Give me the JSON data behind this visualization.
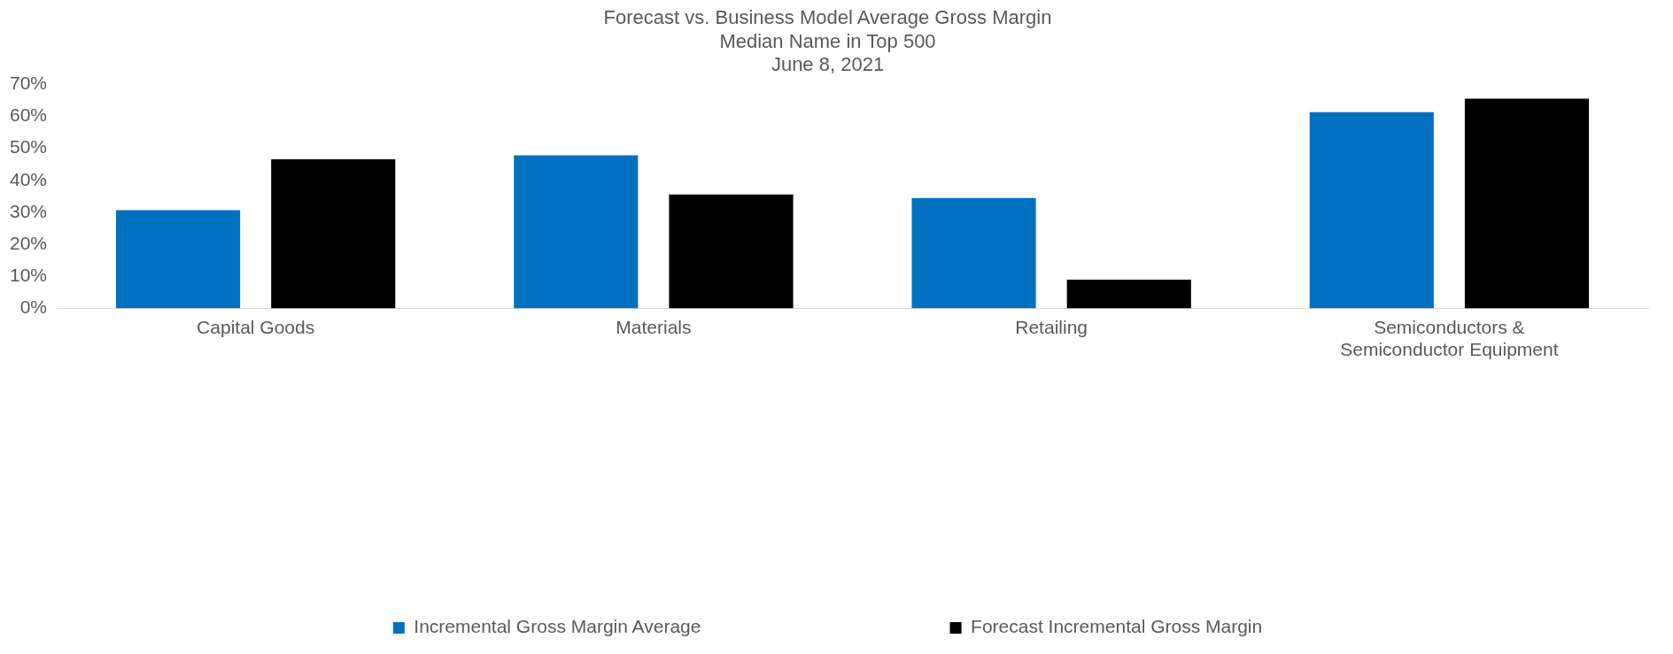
{
  "chart_data": {
    "type": "bar",
    "title": "Forecast vs. Business Model Average Gross Margin",
    "subtitle": "Median Name in Top 500\nJune 8, 2021",
    "categories": [
      "Capital Goods",
      "Materials",
      "Retailing",
      "Semiconductors & Semiconductor Equipment"
    ],
    "series": [
      {
        "name": "Incremental Gross Margin Average",
        "color": "#0070c0",
        "values": [
          30.7,
          47.8,
          34.5,
          61.3
        ]
      },
      {
        "name": "Forecast Incremental Gross Margin",
        "color": "#000000",
        "values": [
          46.6,
          35.6,
          9.0,
          65.5
        ]
      }
    ],
    "ylim": [
      0,
      70
    ],
    "yticks": [
      {
        "value": 0,
        "label": "0%"
      },
      {
        "value": 10,
        "label": "10%"
      },
      {
        "value": 20,
        "label": "20%"
      },
      {
        "value": 30,
        "label": "30%"
      },
      {
        "value": 40,
        "label": "40%"
      },
      {
        "value": 50,
        "label": "50%"
      },
      {
        "value": 60,
        "label": "60%"
      },
      {
        "value": 70,
        "label": "70%"
      }
    ],
    "grid": false,
    "legend": "bottom"
  }
}
